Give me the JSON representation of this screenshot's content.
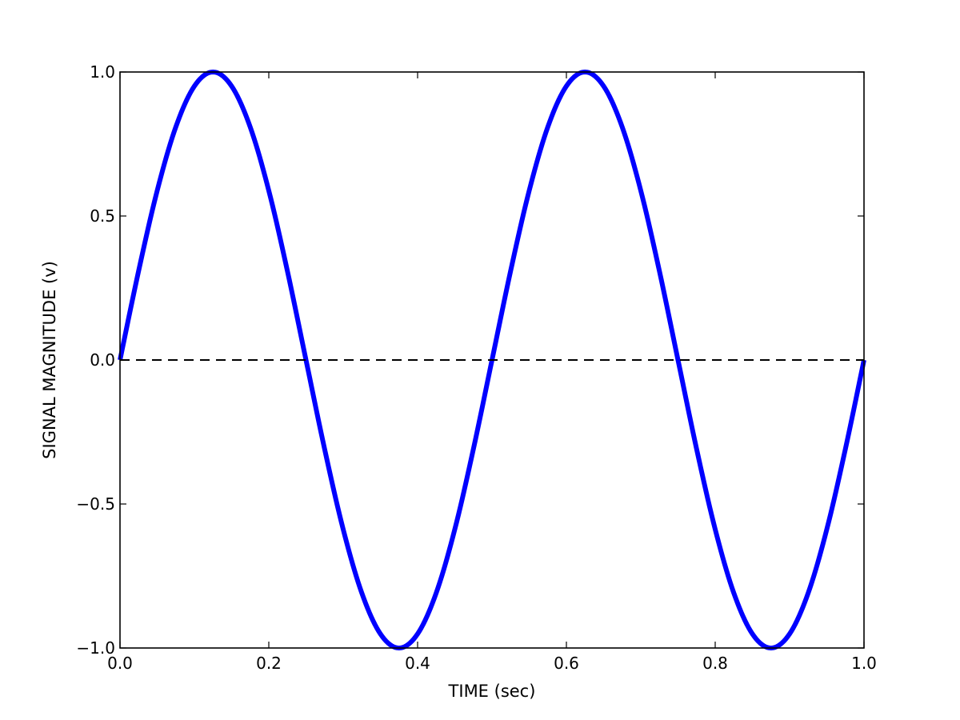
{
  "chart_data": {
    "type": "line",
    "title": "",
    "xlabel": "TIME (sec)",
    "ylabel": "SIGNAL MAGNITUDE (v)",
    "xlim": [
      0.0,
      1.0
    ],
    "ylim": [
      -1.0,
      1.0
    ],
    "x_ticks": [
      0.0,
      0.2,
      0.4,
      0.6,
      0.8,
      1.0
    ],
    "x_tick_labels": [
      "0.0",
      "0.2",
      "0.4",
      "0.6",
      "0.8",
      "1.0"
    ],
    "y_ticks": [
      -1.0,
      -0.5,
      0.0,
      0.5,
      1.0
    ],
    "y_tick_labels": [
      "−1.0",
      "−0.5",
      "0.0",
      "0.5",
      "1.0"
    ],
    "grid": false,
    "legend": "none",
    "series": [
      {
        "color": "#0000ff",
        "line_style": "solid",
        "x": [
          0.0,
          0.025,
          0.05,
          0.075,
          0.1,
          0.125,
          0.15,
          0.175,
          0.2,
          0.225,
          0.25,
          0.275,
          0.3,
          0.325,
          0.35,
          0.375,
          0.4,
          0.425,
          0.45,
          0.475,
          0.5,
          0.525,
          0.55,
          0.575,
          0.6,
          0.625,
          0.65,
          0.675,
          0.7,
          0.725,
          0.75,
          0.775,
          0.8,
          0.825,
          0.85,
          0.875,
          0.9,
          0.925,
          0.95,
          0.975,
          1.0
        ],
        "y": [
          0.0,
          0.309,
          0.588,
          0.809,
          0.951,
          1.0,
          0.951,
          0.809,
          0.588,
          0.309,
          0.0,
          -0.309,
          -0.588,
          -0.809,
          -0.951,
          -1.0,
          -0.951,
          -0.809,
          -0.588,
          -0.309,
          0.0,
          0.309,
          0.588,
          0.809,
          0.951,
          1.0,
          0.951,
          0.809,
          0.588,
          0.309,
          0.0,
          -0.309,
          -0.588,
          -0.809,
          -0.951,
          -1.0,
          -0.951,
          -0.809,
          -0.588,
          -0.309,
          0.0
        ]
      },
      {
        "color": "#000000",
        "line_style": "dashed",
        "x": [
          0.0,
          1.0
        ],
        "y": [
          0.0,
          0.0
        ]
      }
    ]
  }
}
